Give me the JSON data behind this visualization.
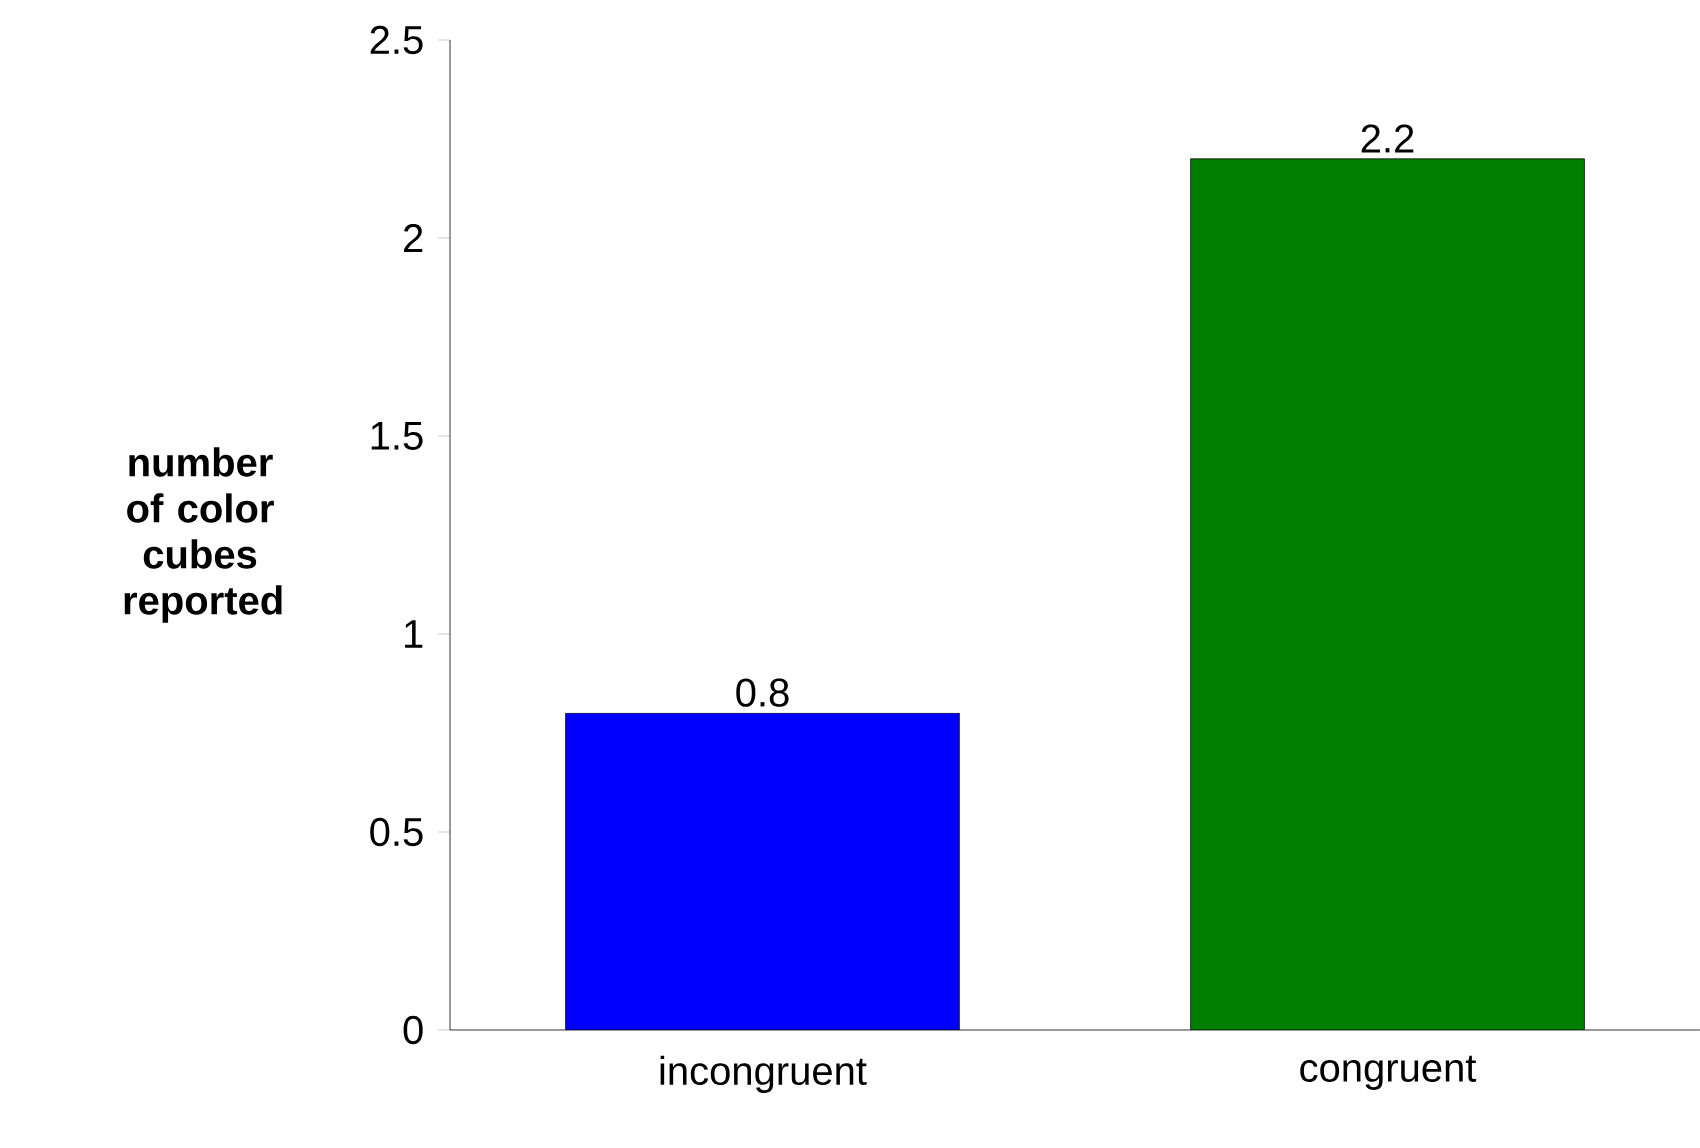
{
  "chart_data": {
    "type": "bar",
    "ylabel": "number of color cubes reported",
    "categories": [
      "incongruent",
      "congruent"
    ],
    "values": [
      0.8,
      2.2
    ],
    "colors": [
      "#0000ff",
      "#008000"
    ],
    "ylim": [
      0,
      2.5
    ],
    "yticks": [
      0,
      0.5,
      1,
      1.5,
      2,
      2.5
    ],
    "data_labels": true
  }
}
